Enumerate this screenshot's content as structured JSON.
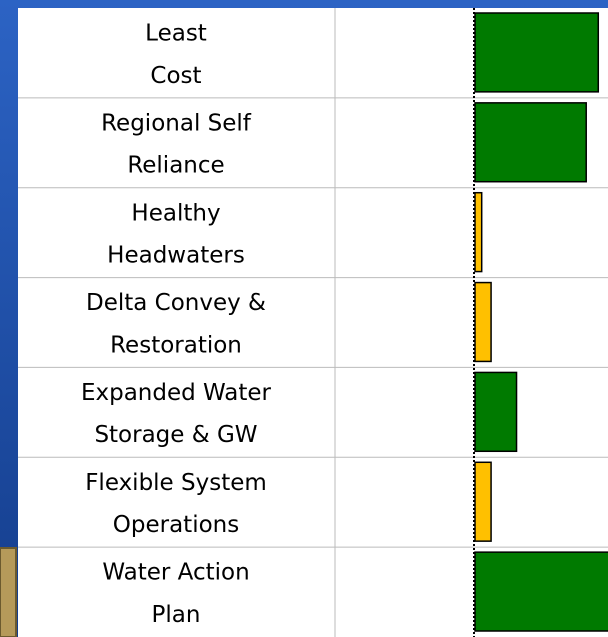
{
  "chart_data": {
    "type": "bar",
    "categories": [
      [
        "Least",
        "Cost"
      ],
      [
        "Regional Self",
        "Reliance"
      ],
      [
        "Healthy",
        "Headwaters"
      ],
      [
        "Delta Convey &",
        "Restoration"
      ],
      [
        "Expanded Water",
        "Storage & GW"
      ],
      [
        "Flexible System",
        "Operations"
      ],
      [
        "Water  Action",
        "Plan"
      ]
    ],
    "values": [
      92,
      83,
      5,
      12,
      31,
      12,
      100
    ],
    "colors": [
      "#007a00",
      "#007a00",
      "#ffc000",
      "#ffc000",
      "#007a00",
      "#ffc000",
      "#007a00"
    ],
    "xlim": [
      0,
      100
    ]
  }
}
